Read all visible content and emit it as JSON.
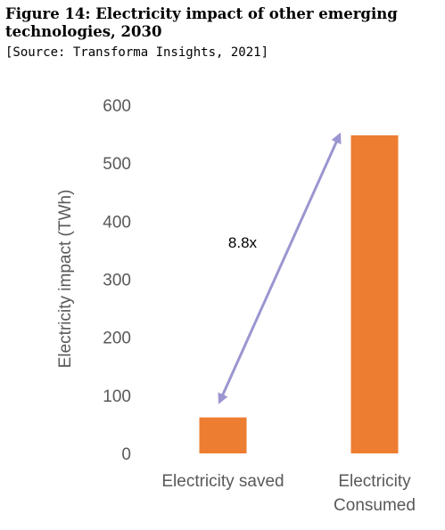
{
  "figure": {
    "title": "Figure 14: Electricity impact of other emerging technologies, 2030",
    "source": "[Source: Transforma Insights, 2021]"
  },
  "chart_data": {
    "type": "bar",
    "categories": [
      [
        "Electricity saved"
      ],
      [
        "Electricity",
        "Consumed"
      ]
    ],
    "values": [
      62,
      548
    ],
    "ylabel": "Electricity impact (TWh)",
    "xlabel": "",
    "ylim": [
      0,
      600
    ],
    "yticks": [
      0,
      100,
      200,
      300,
      400,
      500,
      600
    ],
    "grid": false,
    "legend": "none",
    "bar_color": "#ED7D31",
    "annotations": [
      {
        "text": "8.8x",
        "from": 0,
        "to": 1,
        "arrow": "double",
        "color": "#9B96D0"
      }
    ]
  }
}
